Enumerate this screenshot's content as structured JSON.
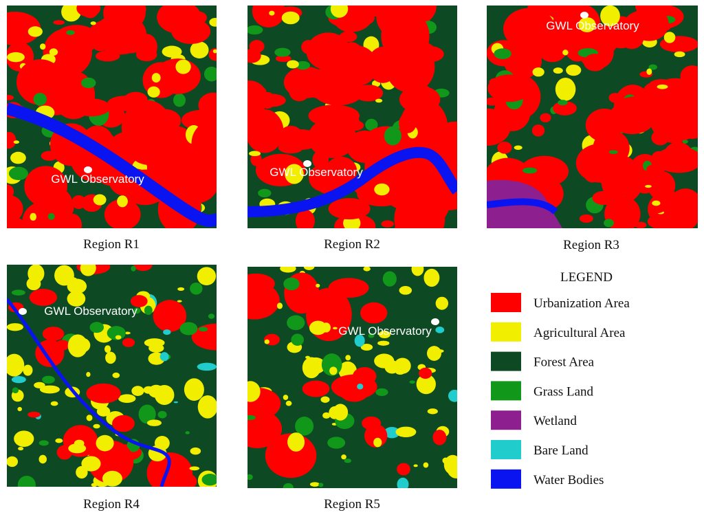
{
  "panels": [
    {
      "caption": "Region R1",
      "marker_label": "GWL Observatory"
    },
    {
      "caption": "Region R2",
      "marker_label": "GWL Observatory"
    },
    {
      "caption": "Region R3",
      "marker_label": "GWL Observatory"
    },
    {
      "caption": "Region R4",
      "marker_label": "GWL Observatory"
    },
    {
      "caption": "Region R5",
      "marker_label": "GWL Observatory"
    }
  ],
  "legend": {
    "title": "LEGEND",
    "items": [
      {
        "label": "Urbanization Area",
        "color": "#ff0000"
      },
      {
        "label": "Agricultural Area",
        "color": "#f2ee00"
      },
      {
        "label": "Forest Area",
        "color": "#0d4a24"
      },
      {
        "label": "Grass Land",
        "color": "#11971a"
      },
      {
        "label": "Wetland",
        "color": "#8e1f8e"
      },
      {
        "label": "Bare Land",
        "color": "#21cccc"
      },
      {
        "label": "Water Bodies",
        "color": "#0a14f0"
      }
    ]
  }
}
